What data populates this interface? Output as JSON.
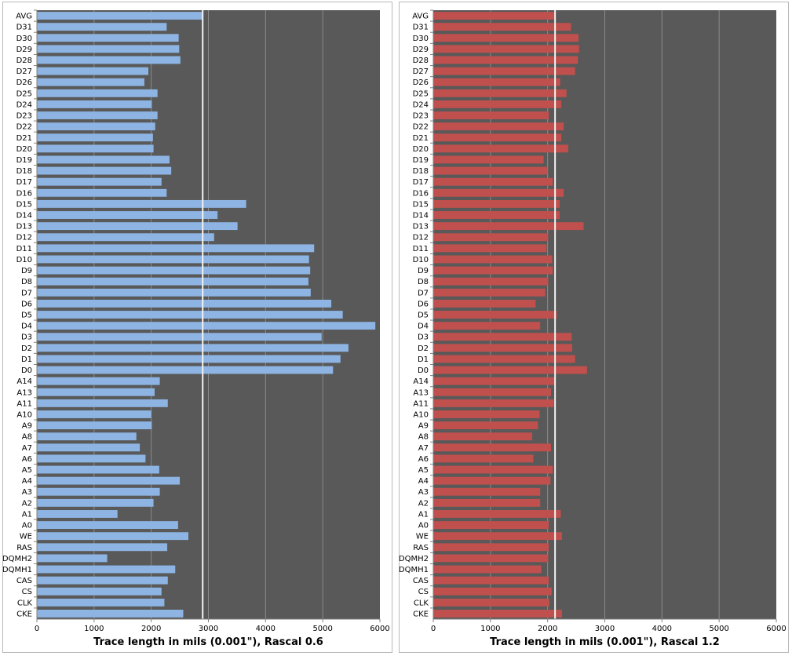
{
  "charts": [
    {
      "type": "bar",
      "orientation": "horizontal",
      "xlabel": "Trace length in mils (0.001\"), Rascal 0.6",
      "categories": [
        "AVG",
        "D31",
        "D30",
        "D29",
        "D28",
        "D27",
        "D26",
        "D25",
        "D24",
        "D23",
        "D22",
        "D21",
        "D20",
        "D19",
        "D18",
        "D17",
        "D16",
        "D15",
        "D14",
        "D13",
        "D12",
        "D11",
        "D10",
        "D9",
        "D8",
        "D7",
        "D6",
        "D5",
        "D4",
        "D3",
        "D2",
        "D1",
        "D0",
        "A14",
        "A13",
        "A11",
        "A10",
        "A9",
        "A8",
        "A7",
        "A6",
        "A5",
        "A4",
        "A3",
        "A2",
        "A1",
        "A0",
        "WE",
        "RAS",
        "DQMH2",
        "DQMH1",
        "CAS",
        "CS",
        "CLK",
        "CKE"
      ],
      "values": [
        2900,
        2270,
        2480,
        2490,
        2510,
        1950,
        1880,
        2110,
        2010,
        2110,
        2070,
        2030,
        2040,
        2320,
        2350,
        2180,
        2270,
        3660,
        3160,
        3510,
        3100,
        4850,
        4760,
        4780,
        4750,
        4790,
        5150,
        5350,
        5920,
        4980,
        5450,
        5310,
        5180,
        2150,
        2060,
        2290,
        2000,
        2010,
        1740,
        1800,
        1900,
        2140,
        2500,
        2150,
        2040,
        1410,
        2470,
        2650,
        2280,
        1230,
        2420,
        2290,
        2180,
        2230,
        2560
      ],
      "avg_line": 2900,
      "xlim": [
        0,
        6000
      ],
      "xticks": [
        "0",
        "1000",
        "2000",
        "3000",
        "4000",
        "5000",
        "6000"
      ],
      "bar_color": "#8db4e2",
      "plot_bg": "#595959",
      "grid_color": "#8a8a8a",
      "avg_line_color": "#f2f2f2"
    },
    {
      "type": "bar",
      "orientation": "horizontal",
      "xlabel": "Trace length in mils (0.001\"), Rascal 1.2",
      "categories": [
        "AVG",
        "D31",
        "D30",
        "D29",
        "D28",
        "D27",
        "D26",
        "D25",
        "D24",
        "D23",
        "D22",
        "D21",
        "D20",
        "D19",
        "D18",
        "D17",
        "D16",
        "D15",
        "D14",
        "D13",
        "D12",
        "D11",
        "D10",
        "D9",
        "D8",
        "D7",
        "D6",
        "D5",
        "D4",
        "D3",
        "D2",
        "D1",
        "D0",
        "A14",
        "A13",
        "A11",
        "A10",
        "A9",
        "A8",
        "A7",
        "A6",
        "A5",
        "A4",
        "A3",
        "A2",
        "A1",
        "A0",
        "WE",
        "RAS",
        "DQMH2",
        "DQMH1",
        "CAS",
        "CS",
        "CLK",
        "CKE"
      ],
      "values": [
        2130,
        2410,
        2540,
        2550,
        2530,
        2480,
        2220,
        2330,
        2240,
        2020,
        2280,
        2240,
        2360,
        1930,
        2000,
        2090,
        2280,
        2210,
        2210,
        2630,
        2010,
        1980,
        2080,
        2090,
        2010,
        1960,
        1790,
        2160,
        1870,
        2420,
        2430,
        2480,
        2690,
        2140,
        2060,
        2110,
        1860,
        1830,
        1730,
        2060,
        1750,
        2090,
        2050,
        1870,
        1870,
        2230,
        2020,
        2250,
        2020,
        2010,
        1890,
        2020,
        2070,
        2030,
        2250
      ],
      "avg_line": 2130,
      "xlim": [
        0,
        6000
      ],
      "xticks": [
        "0",
        "1000",
        "2000",
        "3000",
        "4000",
        "5000",
        "6000"
      ],
      "bar_color": "#c0504d",
      "plot_bg": "#595959",
      "grid_color": "#8a8a8a",
      "avg_line_color": "#f2f2f2"
    }
  ]
}
